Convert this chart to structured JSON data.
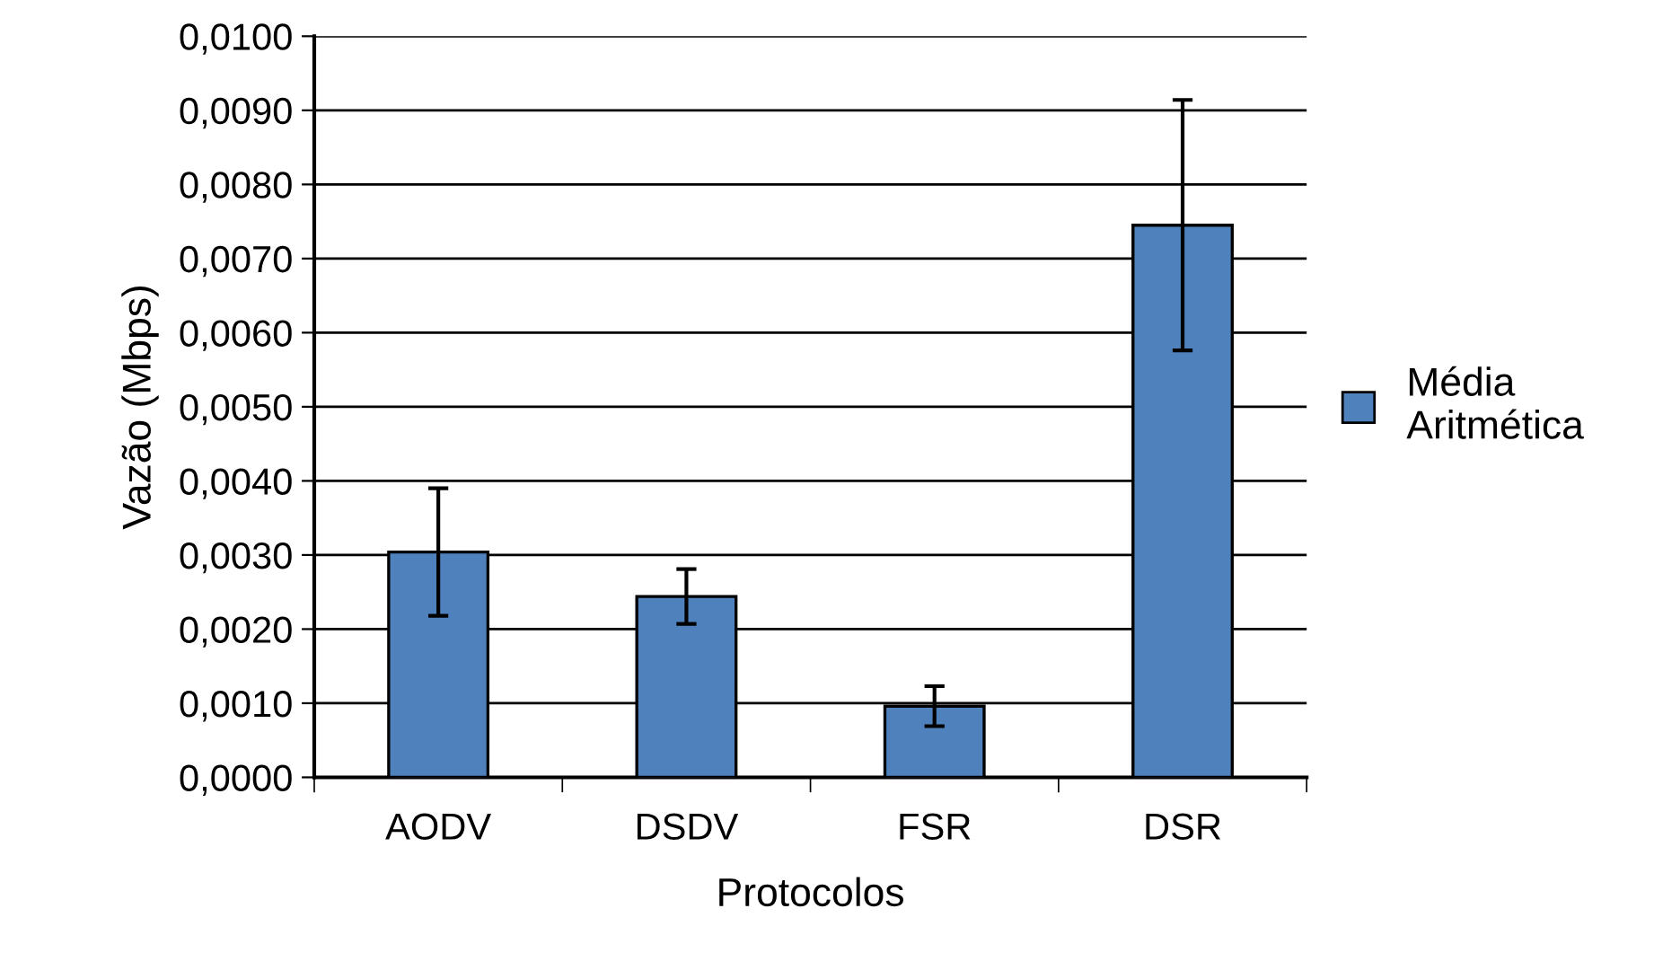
{
  "chart_data": {
    "type": "bar",
    "xlabel": "Protocolos",
    "ylabel": "Vazão (Mbps)",
    "categories": [
      "AODV",
      "DSDV",
      "FSR",
      "DSR"
    ],
    "series": [
      {
        "name": "Média\nAritmética",
        "color": "#4f81bd",
        "values": [
          0.00304,
          0.00244,
          0.00096,
          0.00745
        ],
        "errors": [
          0.00086,
          0.00037,
          0.00027,
          0.00169
        ]
      }
    ],
    "ylim": [
      0,
      0.01
    ],
    "yticks": [
      {
        "value": 0,
        "label": "0,0000"
      },
      {
        "value": 0.001,
        "label": "0,0010"
      },
      {
        "value": 0.002,
        "label": "0,0020"
      },
      {
        "value": 0.003,
        "label": "0,0030"
      },
      {
        "value": 0.004,
        "label": "0,0040"
      },
      {
        "value": 0.005,
        "label": "0,0050"
      },
      {
        "value": 0.006,
        "label": "0,0060"
      },
      {
        "value": 0.007,
        "label": "0,0070"
      },
      {
        "value": 0.008,
        "label": "0,0080"
      },
      {
        "value": 0.009,
        "label": "0,0090"
      },
      {
        "value": 0.01,
        "label": "0,0100"
      }
    ],
    "grid": "y",
    "legend": "right"
  }
}
